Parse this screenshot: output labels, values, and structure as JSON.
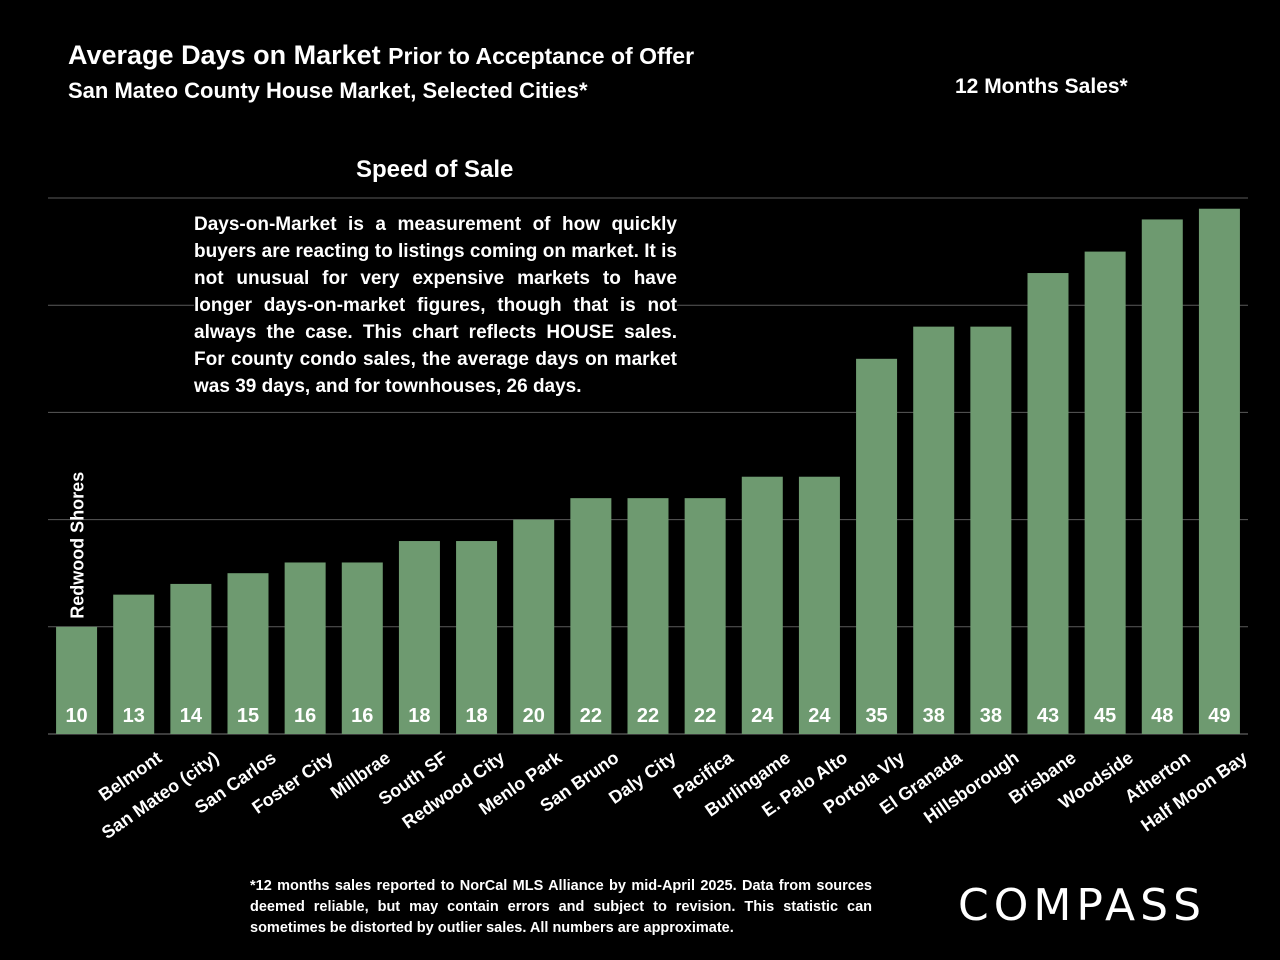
{
  "header": {
    "title_main": "Average Days on Market",
    "title_rest": "Prior to Acceptance of Offer",
    "subtitle": "San Mateo County House Market, Selected Cities*",
    "period": "12 Months Sales*"
  },
  "note": "Days-on-Market is a measurement of how quickly buyers are reacting to listings coming on market. It is not unusual for very expensive markets to have longer days-on-market figures, though that is not always the case. This chart reflects HOUSE sales. For county condo sales, the average days on market was 39 days, and for townhouses, 26 days.",
  "footnote": "*12 months sales reported to NorCal MLS Alliance by mid-April 2025. Data from sources deemed reliable, but may contain errors and subject to revision. This statistic can sometimes be distorted by outlier sales. All numbers are approximate.",
  "logo": "COMPASS",
  "colors": {
    "bar": "#6e9a70",
    "grid": "#5a5a5a",
    "background": "#000000",
    "text": "#ffffff"
  },
  "chart_data": {
    "type": "bar",
    "title": "Speed of Sale",
    "xlabel": "",
    "ylabel": "",
    "ylim": [
      0,
      50
    ],
    "grid": true,
    "categories": [
      "Redwood Shores",
      "Belmont",
      "San Mateo (city)",
      "San Carlos",
      "Foster City",
      "Millbrae",
      "South SF",
      "Redwood City",
      "Menlo Park",
      "San Bruno",
      "Daly City",
      "Pacifica",
      "Burlingame",
      "E. Palo Alto",
      "Portola Vly",
      "El Granada",
      "Hillsborough",
      "Brisbane",
      "Woodside",
      "Atherton",
      "Half Moon Bay"
    ],
    "values": [
      10,
      13,
      14,
      15,
      16,
      16,
      18,
      18,
      20,
      22,
      22,
      22,
      24,
      24,
      35,
      38,
      38,
      43,
      45,
      48,
      49
    ]
  }
}
